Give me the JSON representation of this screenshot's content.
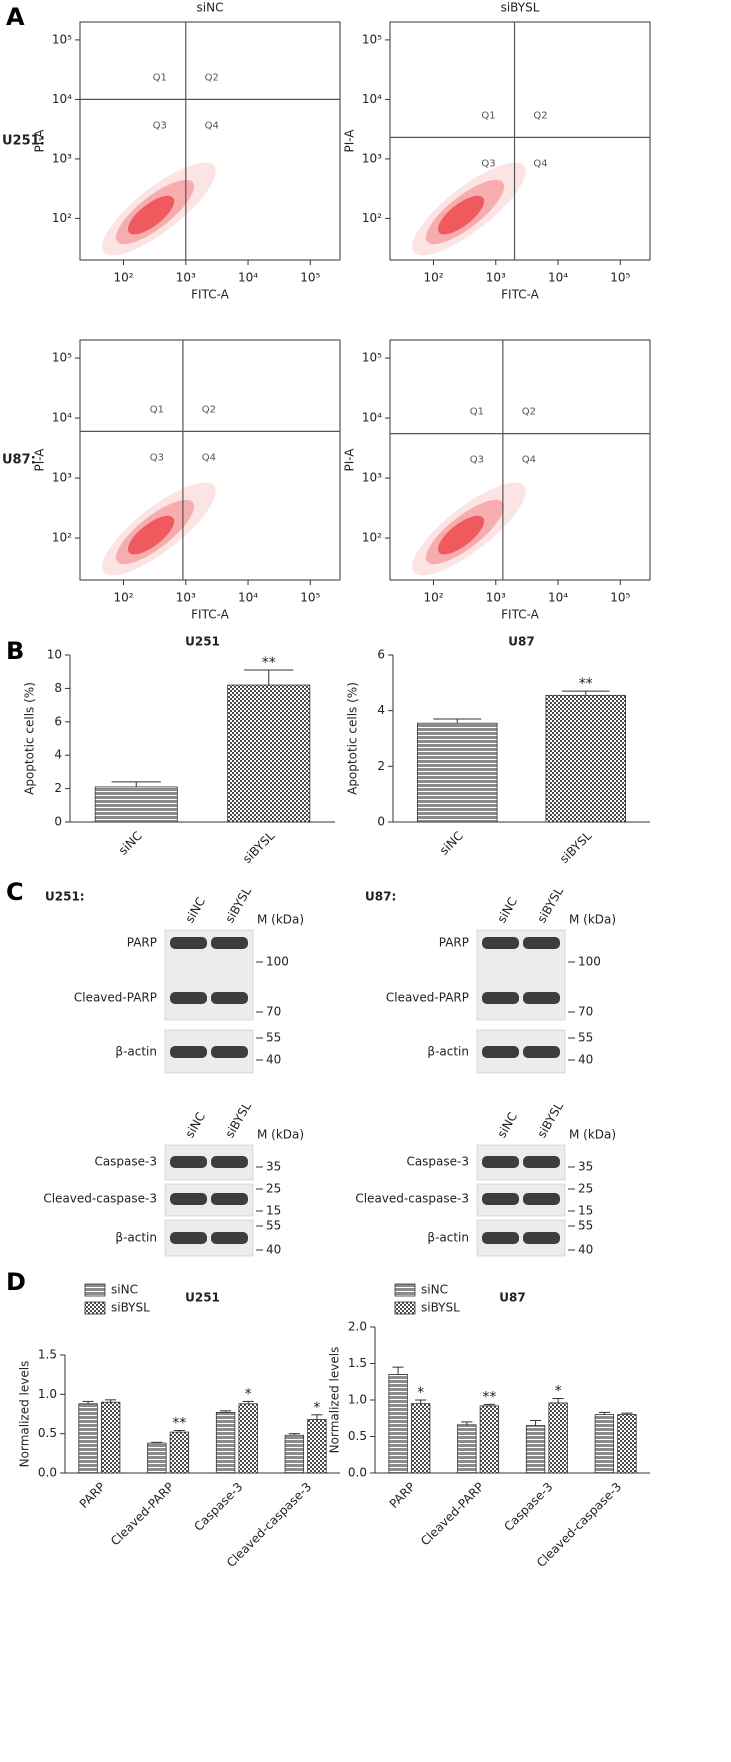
{
  "panel_letters": [
    "A",
    "B",
    "C",
    "D"
  ],
  "chart_data": [
    {
      "type": "flow",
      "title": "siNC",
      "row_label": "U251:",
      "xlabel": "FITC-A",
      "ylabel": "PI-A",
      "log": true,
      "color": "#e8262a",
      "xlim": [
        20,
        300000
      ],
      "ylim": [
        20,
        200000
      ],
      "xticks": [
        {
          "value": 100,
          "label": "10²"
        },
        {
          "value": 1000,
          "label": "10³"
        },
        {
          "value": 10000,
          "label": "10⁴"
        },
        {
          "value": 100000,
          "label": "10⁵"
        }
      ],
      "yticks": [
        {
          "value": 100,
          "label": "10²"
        },
        {
          "value": 1000,
          "label": "10³"
        },
        {
          "value": 10000,
          "label": "10⁴"
        },
        {
          "value": 100000,
          "label": "10⁵"
        }
      ],
      "gate": [
        1000,
        10000
      ],
      "quadrants": [
        "Q1",
        "Q2",
        "Q3",
        "Q4"
      ]
    },
    {
      "type": "flow",
      "title": "siBYSL",
      "xlabel": "FITC-A",
      "ylabel": "PI-A",
      "log": true,
      "color": "#e8262a",
      "xlim": [
        20,
        300000
      ],
      "ylim": [
        20,
        200000
      ],
      "xticks": [
        {
          "value": 100,
          "label": "10²"
        },
        {
          "value": 1000,
          "label": "10³"
        },
        {
          "value": 10000,
          "label": "10⁴"
        },
        {
          "value": 100000,
          "label": "10⁵"
        }
      ],
      "yticks": [
        {
          "value": 100,
          "label": "10²"
        },
        {
          "value": 1000,
          "label": "10³"
        },
        {
          "value": 10000,
          "label": "10⁴"
        },
        {
          "value": 100000,
          "label": "10⁵"
        }
      ],
      "gate": [
        2000,
        2300
      ],
      "quadrants": [
        "Q1",
        "Q2",
        "Q3",
        "Q4"
      ]
    },
    {
      "type": "flow",
      "row_label": "U87:",
      "xlabel": "FITC-A",
      "ylabel": "PI-A",
      "log": true,
      "color": "#e8262a",
      "xlim": [
        20,
        300000
      ],
      "ylim": [
        20,
        200000
      ],
      "xticks": [
        {
          "value": 100,
          "label": "10²"
        },
        {
          "value": 1000,
          "label": "10³"
        },
        {
          "value": 10000,
          "label": "10⁴"
        },
        {
          "value": 100000,
          "label": "10⁵"
        }
      ],
      "yticks": [
        {
          "value": 100,
          "label": "10²"
        },
        {
          "value": 1000,
          "label": "10³"
        },
        {
          "value": 10000,
          "label": "10⁴"
        },
        {
          "value": 100000,
          "label": "10⁵"
        }
      ],
      "gate": [
        900,
        6000
      ],
      "quadrants": [
        "Q1",
        "Q2",
        "Q3",
        "Q4"
      ]
    },
    {
      "type": "flow",
      "xlabel": "FITC-A",
      "ylabel": "PI-A",
      "log": true,
      "color": "#e8262a",
      "xlim": [
        20,
        300000
      ],
      "ylim": [
        20,
        200000
      ],
      "xticks": [
        {
          "value": 100,
          "label": "10²"
        },
        {
          "value": 1000,
          "label": "10³"
        },
        {
          "value": 10000,
          "label": "10⁴"
        },
        {
          "value": 100000,
          "label": "10⁵"
        }
      ],
      "yticks": [
        {
          "value": 100,
          "label": "10²"
        },
        {
          "value": 1000,
          "label": "10³"
        },
        {
          "value": 10000,
          "label": "10⁴"
        },
        {
          "value": 100000,
          "label": "10⁵"
        }
      ],
      "gate": [
        1300,
        5500
      ],
      "quadrants": [
        "Q1",
        "Q2",
        "Q3",
        "Q4"
      ]
    },
    {
      "type": "bar",
      "title": "U251",
      "ylabel": "Apoptotic cells (%)",
      "categories": [
        "siNC",
        "siBYSL"
      ],
      "values": [
        2.1,
        8.2
      ],
      "errors": [
        0.3,
        0.9
      ],
      "significance": [
        null,
        "**"
      ],
      "colors": [
        "#8c8c8c",
        "#4a4a4a"
      ],
      "ylim": [
        0,
        10
      ],
      "yticks": [
        0,
        2,
        4,
        6,
        8,
        10
      ]
    },
    {
      "type": "bar",
      "title": "U87",
      "ylabel": "Apoptotic cells (%)",
      "categories": [
        "siNC",
        "siBYSL"
      ],
      "values": [
        3.55,
        4.55
      ],
      "errors": [
        0.15,
        0.15
      ],
      "significance": [
        null,
        "**"
      ],
      "colors": [
        "#8c8c8c",
        "#4a4a4a"
      ],
      "ylim": [
        0,
        6
      ],
      "yticks": [
        0,
        2,
        4,
        6
      ]
    },
    {
      "type": "bar",
      "title": "U251",
      "ylabel": "Normalized levels",
      "legend": "upper left",
      "categories": [
        "PARP",
        "Cleaved-PARP",
        "Caspase-3",
        "Cleaved-caspase-3"
      ],
      "series": [
        {
          "name": "siNC",
          "color": "#8c8c8c",
          "values": [
            0.88,
            0.38,
            0.77,
            0.48
          ],
          "errors": [
            0.03,
            0.01,
            0.02,
            0.02
          ],
          "significance": [
            null,
            null,
            null,
            null
          ]
        },
        {
          "name": "siBYSL",
          "color": "#4a4a4a",
          "values": [
            0.9,
            0.52,
            0.88,
            0.68
          ],
          "errors": [
            0.03,
            0.02,
            0.03,
            0.06
          ],
          "significance": [
            null,
            "**",
            "*",
            "*"
          ]
        }
      ],
      "ylim": [
        0,
        1.5
      ],
      "yticks": [
        {
          "value": 0,
          "label": "0.0"
        },
        {
          "value": 0.5,
          "label": "0.5"
        },
        {
          "value": 1,
          "label": "1.0"
        },
        {
          "value": 1.5,
          "label": "1.5"
        }
      ]
    },
    {
      "type": "bar",
      "title": "U87",
      "ylabel": "Normalized levels",
      "legend": "upper left",
      "categories": [
        "PARP",
        "Cleaved-PARP",
        "Caspase-3",
        "Cleaved-caspase-3"
      ],
      "series": [
        {
          "name": "siNC",
          "color": "#8c8c8c",
          "values": [
            1.35,
            0.66,
            0.65,
            0.8
          ],
          "errors": [
            0.1,
            0.04,
            0.07,
            0.03
          ],
          "significance": [
            null,
            null,
            null,
            null
          ]
        },
        {
          "name": "siBYSL",
          "color": "#4a4a4a",
          "values": [
            0.95,
            0.92,
            0.96,
            0.8
          ],
          "errors": [
            0.05,
            0.02,
            0.06,
            0.02
          ],
          "significance": [
            "*",
            "**",
            "*",
            null
          ]
        }
      ],
      "ylim": [
        0,
        2
      ],
      "yticks": [
        {
          "value": 0,
          "label": "0.0"
        },
        {
          "value": 0.5,
          "label": "0.5"
        },
        {
          "value": 1,
          "label": "1.0"
        },
        {
          "value": 1.5,
          "label": "1.5"
        },
        {
          "value": 2,
          "label": "2.0"
        }
      ]
    }
  ],
  "blots": [
    {
      "cell": "U251:",
      "lanes": [
        "siNC",
        "siBYSL"
      ],
      "unit": "M (kDa)",
      "panels": [
        {
          "bands": [
            "PARP",
            "Cleaved-PARP"
          ],
          "markers": [
            "100",
            "70"
          ]
        },
        {
          "bands": [
            "β-actin"
          ],
          "markers": [
            "55",
            "40"
          ]
        }
      ]
    },
    {
      "cell": "U87:",
      "lanes": [
        "siNC",
        "siBYSL"
      ],
      "unit": "M (kDa)",
      "panels": [
        {
          "bands": [
            "PARP",
            "Cleaved-PARP"
          ],
          "markers": [
            "100",
            "70"
          ]
        },
        {
          "bands": [
            "β-actin"
          ],
          "markers": [
            "55",
            "40"
          ]
        }
      ]
    },
    {
      "lanes": [
        "siNC",
        "siBYSL"
      ],
      "unit": "M (kDa)",
      "panels": [
        {
          "bands": [
            "Caspase-3"
          ],
          "markers": [
            "35"
          ]
        },
        {
          "bands": [
            "Cleaved-caspase-3"
          ],
          "markers": [
            "25",
            "15"
          ]
        },
        {
          "bands": [
            "β-actin"
          ],
          "markers": [
            "55",
            "40"
          ]
        }
      ]
    },
    {
      "lanes": [
        "siNC",
        "siBYSL"
      ],
      "unit": "M (kDa)",
      "panels": [
        {
          "bands": [
            "Caspase-3"
          ],
          "markers": [
            "35"
          ]
        },
        {
          "bands": [
            "Cleaved-caspase-3"
          ],
          "markers": [
            "25",
            "15"
          ]
        },
        {
          "bands": [
            "β-actin"
          ],
          "markers": [
            "55",
            "40"
          ]
        }
      ]
    }
  ]
}
